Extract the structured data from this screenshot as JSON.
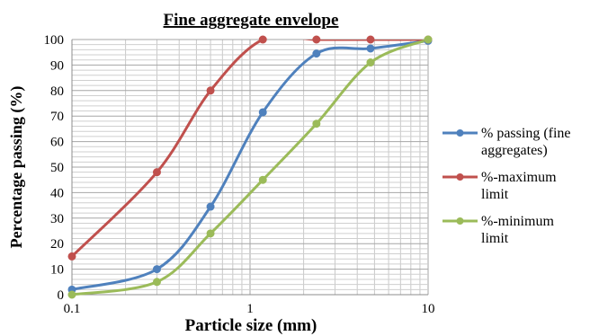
{
  "chart_data": {
    "type": "line",
    "title": "Fine aggregate envelope",
    "xlabel": "Particle size (mm)",
    "ylabel": "Percentage passing (%)",
    "x_scale": "log",
    "xlim": [
      0.1,
      10
    ],
    "ylim": [
      0,
      100
    ],
    "x_ticks": [
      "0.1",
      "1",
      "10"
    ],
    "y_ticks": [
      "0",
      "10",
      "20",
      "30",
      "40",
      "50",
      "60",
      "70",
      "80",
      "90",
      "100"
    ],
    "grid": true,
    "legend_position": "right",
    "series": [
      {
        "name": "% passing (fine aggregates)",
        "color": "#4f81bd",
        "x": [
          0.1,
          0.3,
          0.6,
          1.18,
          2.36,
          4.75,
          10
        ],
        "y": [
          2,
          10,
          34.5,
          71.5,
          94.5,
          96.5,
          99.5
        ]
      },
      {
        "name": "%-maximum limit",
        "color": "#c0504d",
        "x": [
          0.1,
          0.3,
          0.6,
          1.18,
          2.36,
          4.75,
          10
        ],
        "y": [
          15,
          48,
          80,
          100,
          100,
          100,
          100
        ]
      },
      {
        "name": "%-minimum limit",
        "color": "#9bbb59",
        "x": [
          0.1,
          0.3,
          0.6,
          1.18,
          2.36,
          4.75,
          10
        ],
        "y": [
          0,
          5,
          24,
          45,
          67,
          91,
          100
        ]
      }
    ]
  }
}
